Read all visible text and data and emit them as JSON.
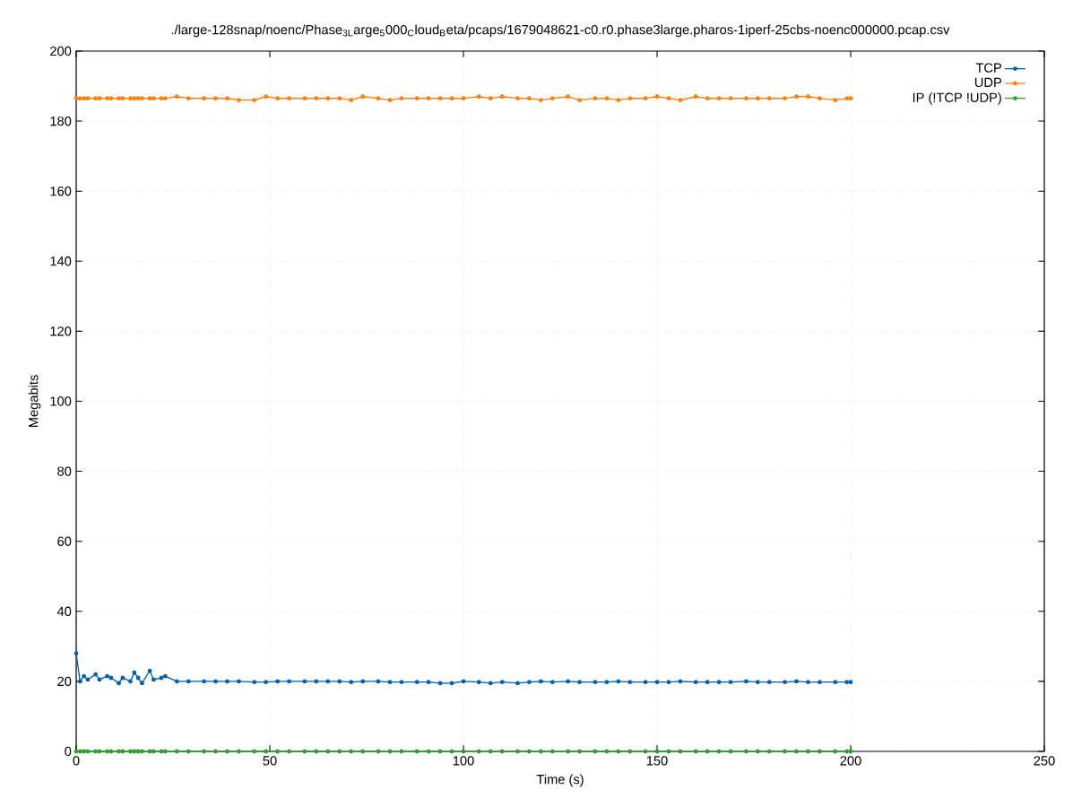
{
  "chart_data": {
    "type": "line",
    "title": "./large-128snap/noenc/Phase$_{3L}$arge$_{5}$000$_{C}$loud$_{B}$eta/pcaps/1679048621-c0.r0.phase3large.pharos-1iperf-25cbs-noenc000000.pcap.csv",
    "xlabel": "Time (s)",
    "ylabel": "Megabits",
    "x": [
      0,
      1,
      2,
      3,
      5,
      6,
      8,
      9,
      11,
      12,
      14,
      15,
      16,
      17,
      19,
      20,
      22,
      23,
      26,
      29,
      33,
      36,
      39,
      42,
      46,
      49,
      52,
      55,
      59,
      62,
      65,
      68,
      71,
      74,
      78,
      81,
      84,
      88,
      91,
      94,
      97,
      100,
      104,
      107,
      110,
      114,
      117,
      120,
      123,
      127,
      130,
      134,
      137,
      140,
      143,
      147,
      150,
      153,
      156,
      160,
      163,
      166,
      169,
      173,
      176,
      179,
      183,
      186,
      189,
      192,
      196,
      199,
      200
    ],
    "series": [
      {
        "name": "TCP",
        "color": "#0060ad",
        "values": [
          28,
          20,
          21.5,
          20.5,
          22,
          20.5,
          21.5,
          21,
          19.5,
          21,
          20,
          22.5,
          21,
          19.5,
          23,
          20.5,
          21,
          21.5,
          20,
          20,
          20,
          20,
          20,
          20,
          19.8,
          19.8,
          20,
          20,
          20,
          20,
          20,
          20,
          19.8,
          20,
          20,
          19.8,
          19.8,
          19.8,
          19.8,
          19.5,
          19.5,
          20,
          19.8,
          19.5,
          19.8,
          19.5,
          19.8,
          20,
          19.8,
          20,
          19.8,
          19.8,
          19.8,
          20,
          19.8,
          19.8,
          19.8,
          19.8,
          20,
          19.8,
          19.8,
          19.8,
          19.8,
          20,
          19.8,
          19.8,
          19.8,
          20,
          19.8,
          19.8,
          19.8,
          19.8,
          19.8
        ]
      },
      {
        "name": "UDP",
        "color": "#ff7f0e",
        "values": [
          186.5,
          186.5,
          186.5,
          186.5,
          186.5,
          186.5,
          186.5,
          186.5,
          186.5,
          186.5,
          186.5,
          186.5,
          186.5,
          186.5,
          186.5,
          186.5,
          186.5,
          186.5,
          187,
          186.5,
          186.5,
          186.5,
          186.5,
          186,
          186,
          187,
          186.5,
          186.5,
          186.5,
          186.5,
          186.5,
          186.5,
          186,
          187,
          186.5,
          186,
          186.5,
          186.5,
          186.5,
          186.5,
          186.5,
          186.5,
          187,
          186.5,
          187,
          186.5,
          186.5,
          186,
          186.5,
          187,
          186,
          186.5,
          186.5,
          186,
          186.5,
          186.5,
          187,
          186.5,
          186,
          187,
          186.5,
          186.5,
          186.5,
          186.5,
          186.5,
          186.5,
          186.5,
          187,
          187,
          186.5,
          186,
          186.5,
          186.5
        ]
      },
      {
        "name": "IP (!TCP  !UDP)",
        "color": "#2ca02c",
        "values": [
          0,
          0,
          0,
          0,
          0,
          0,
          0,
          0,
          0,
          0,
          0,
          0,
          0,
          0,
          0,
          0,
          0,
          0,
          0,
          0,
          0,
          0,
          0,
          0,
          0,
          0,
          0,
          0,
          0,
          0,
          0,
          0,
          0,
          0,
          0,
          0,
          0,
          0,
          0,
          0,
          0,
          0,
          0,
          0,
          0,
          0,
          0,
          0,
          0,
          0,
          0,
          0,
          0,
          0,
          0,
          0,
          0,
          0,
          0,
          0,
          0,
          0,
          0,
          0,
          0,
          0,
          0,
          0,
          0,
          0,
          0,
          0,
          0
        ]
      }
    ],
    "xlim": [
      0,
      250
    ],
    "xticks": [
      0,
      50,
      100,
      150,
      200,
      250
    ],
    "ylim": [
      0,
      200
    ],
    "yticks": [
      0,
      20,
      40,
      60,
      80,
      100,
      120,
      140,
      160,
      180,
      200
    ],
    "grid": true,
    "legend": "top right",
    "marker": "circle",
    "line_style": "solid"
  }
}
